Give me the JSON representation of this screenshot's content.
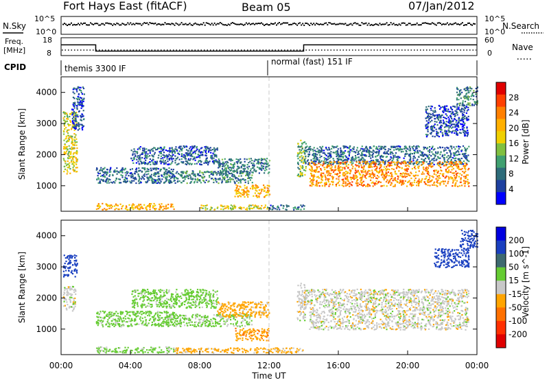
{
  "header": {
    "station": "Fort Hays East (fitACF)",
    "beam": "Beam 05",
    "date": "07/Jan/2012"
  },
  "strips": {
    "nsky_label": "N.Sky",
    "nsearch_label": "N.Search",
    "noise_ticks": [
      "10^5",
      "10^0"
    ],
    "freq_label_1": "Freq.",
    "freq_label_2": "[MHz]",
    "freq_ticks": [
      "18",
      "8"
    ],
    "nave_label": "Nave",
    "nave_ticks": [
      "60",
      "0"
    ],
    "cpid_label": "CPID",
    "cpid_modes": [
      {
        "name": "themis 3300 IF",
        "start_hour": 0,
        "end_hour": 12
      },
      {
        "name": "normal (fast) 151 IF",
        "start_hour": 12,
        "end_hour": 24
      }
    ],
    "freq_segments_mhz": [
      {
        "start_hour": 0,
        "end_hour": 2,
        "value": 14
      },
      {
        "start_hour": 2,
        "end_hour": 14,
        "value": 10.5
      },
      {
        "start_hour": 14,
        "end_hour": 24,
        "value": 14
      }
    ],
    "nave_value": 15
  },
  "chart_data": [
    {
      "type": "heatmap",
      "name": "power",
      "ylabel": "Slant Range [km]",
      "ylim": [
        180,
        4500
      ],
      "yticks": [
        "1000",
        "2000",
        "3000",
        "4000"
      ],
      "xlim": [
        0,
        24
      ],
      "colorbar_label": "Power [dB]",
      "colorbar_ticks": [
        "28",
        "24",
        "20",
        "16",
        "12",
        "8",
        "4"
      ],
      "colorbar_colors": [
        "#e00000",
        "#ff4000",
        "#ff8000",
        "#ffb000",
        "#f0d000",
        "#80c040",
        "#40a070",
        "#2e6c7a",
        "#1e40a0",
        "#0000ff"
      ],
      "regions": [
        {
          "x0": 0.1,
          "x1": 0.9,
          "y0": 1400,
          "y1": 3400,
          "level": 18
        },
        {
          "x0": 0.6,
          "x1": 1.3,
          "y0": 2800,
          "y1": 4200,
          "level": 6
        },
        {
          "x0": 2.0,
          "x1": 6.5,
          "y0": 1100,
          "y1": 1600,
          "level": 8
        },
        {
          "x0": 4.0,
          "x1": 9.0,
          "y0": 1700,
          "y1": 2300,
          "level": 7
        },
        {
          "x0": 6.0,
          "x1": 11.0,
          "y0": 1100,
          "y1": 1500,
          "level": 10
        },
        {
          "x0": 9.0,
          "x1": 12.0,
          "y0": 1400,
          "y1": 1900,
          "level": 9
        },
        {
          "x0": 10.0,
          "x1": 12.0,
          "y0": 650,
          "y1": 1050,
          "level": 22
        },
        {
          "x0": 13.6,
          "x1": 14.1,
          "y0": 1300,
          "y1": 2500,
          "level": 14
        },
        {
          "x0": 14.0,
          "x1": 23.5,
          "y0": 1700,
          "y1": 2300,
          "level": 8
        },
        {
          "x0": 14.3,
          "x1": 23.5,
          "y0": 1000,
          "y1": 1800,
          "level": 24
        },
        {
          "x0": 21.0,
          "x1": 23.5,
          "y0": 2600,
          "y1": 3600,
          "level": 6
        },
        {
          "x0": 22.8,
          "x1": 24.0,
          "y0": 3600,
          "y1": 4200,
          "level": 10
        },
        {
          "x0": 2.0,
          "x1": 6.5,
          "y0": 250,
          "y1": 450,
          "level": 22
        },
        {
          "x0": 8.0,
          "x1": 12.0,
          "y0": 250,
          "y1": 400,
          "level": 18
        },
        {
          "x0": 12.0,
          "x1": 14.0,
          "y0": 250,
          "y1": 400,
          "level": 8
        }
      ]
    },
    {
      "type": "heatmap",
      "name": "velocity",
      "ylabel": "Slant Range [km]",
      "ylim": [
        180,
        4500
      ],
      "yticks": [
        "1000",
        "2000",
        "3000",
        "4000"
      ],
      "xlim": [
        0,
        24
      ],
      "xticks": [
        "00:00",
        "04:00",
        "08:00",
        "12:00",
        "16:00",
        "20:00",
        "00:00"
      ],
      "xlabel": "Time UT",
      "colorbar_label": "Velocity [m s^-1]",
      "colorbar_ticks": [
        "200",
        "100",
        "50",
        "15",
        "-15",
        "-50",
        "-100",
        "-200"
      ],
      "colorbar_colors": [
        "#0000e0",
        "#1a40c0",
        "#3e6a70",
        "#66cc33",
        "#c8c8c8",
        "#ffa500",
        "#ff7000",
        "#ff3000",
        "#e00000"
      ],
      "regions": [
        {
          "x0": 0.1,
          "x1": 0.9,
          "y0": 2700,
          "y1": 3400,
          "level": 150
        },
        {
          "x0": 0.1,
          "x1": 0.8,
          "y0": 1600,
          "y1": 2400,
          "level": 0
        },
        {
          "x0": 2.0,
          "x1": 6.5,
          "y0": 1100,
          "y1": 1600,
          "level": 30
        },
        {
          "x0": 4.0,
          "x1": 9.0,
          "y0": 1700,
          "y1": 2300,
          "level": 30
        },
        {
          "x0": 6.0,
          "x1": 11.0,
          "y0": 1100,
          "y1": 1500,
          "level": 25
        },
        {
          "x0": 9.0,
          "x1": 12.0,
          "y0": 1400,
          "y1": 1900,
          "level": -30
        },
        {
          "x0": 10.0,
          "x1": 12.0,
          "y0": 650,
          "y1": 1050,
          "level": -40
        },
        {
          "x0": 13.6,
          "x1": 14.1,
          "y0": 1300,
          "y1": 2500,
          "level": 0
        },
        {
          "x0": 14.3,
          "x1": 23.5,
          "y0": 1000,
          "y1": 1800,
          "level": 0
        },
        {
          "x0": 14.0,
          "x1": 23.5,
          "y0": 1800,
          "y1": 2300,
          "level": 0
        },
        {
          "x0": 21.5,
          "x1": 23.5,
          "y0": 3000,
          "y1": 3600,
          "level": 180
        },
        {
          "x0": 23.0,
          "x1": 24.0,
          "y0": 3600,
          "y1": 4200,
          "level": 180
        },
        {
          "x0": 2.0,
          "x1": 6.5,
          "y0": 250,
          "y1": 450,
          "level": 25
        },
        {
          "x0": 6.5,
          "x1": 14.0,
          "y0": 250,
          "y1": 420,
          "level": -30
        }
      ]
    }
  ]
}
